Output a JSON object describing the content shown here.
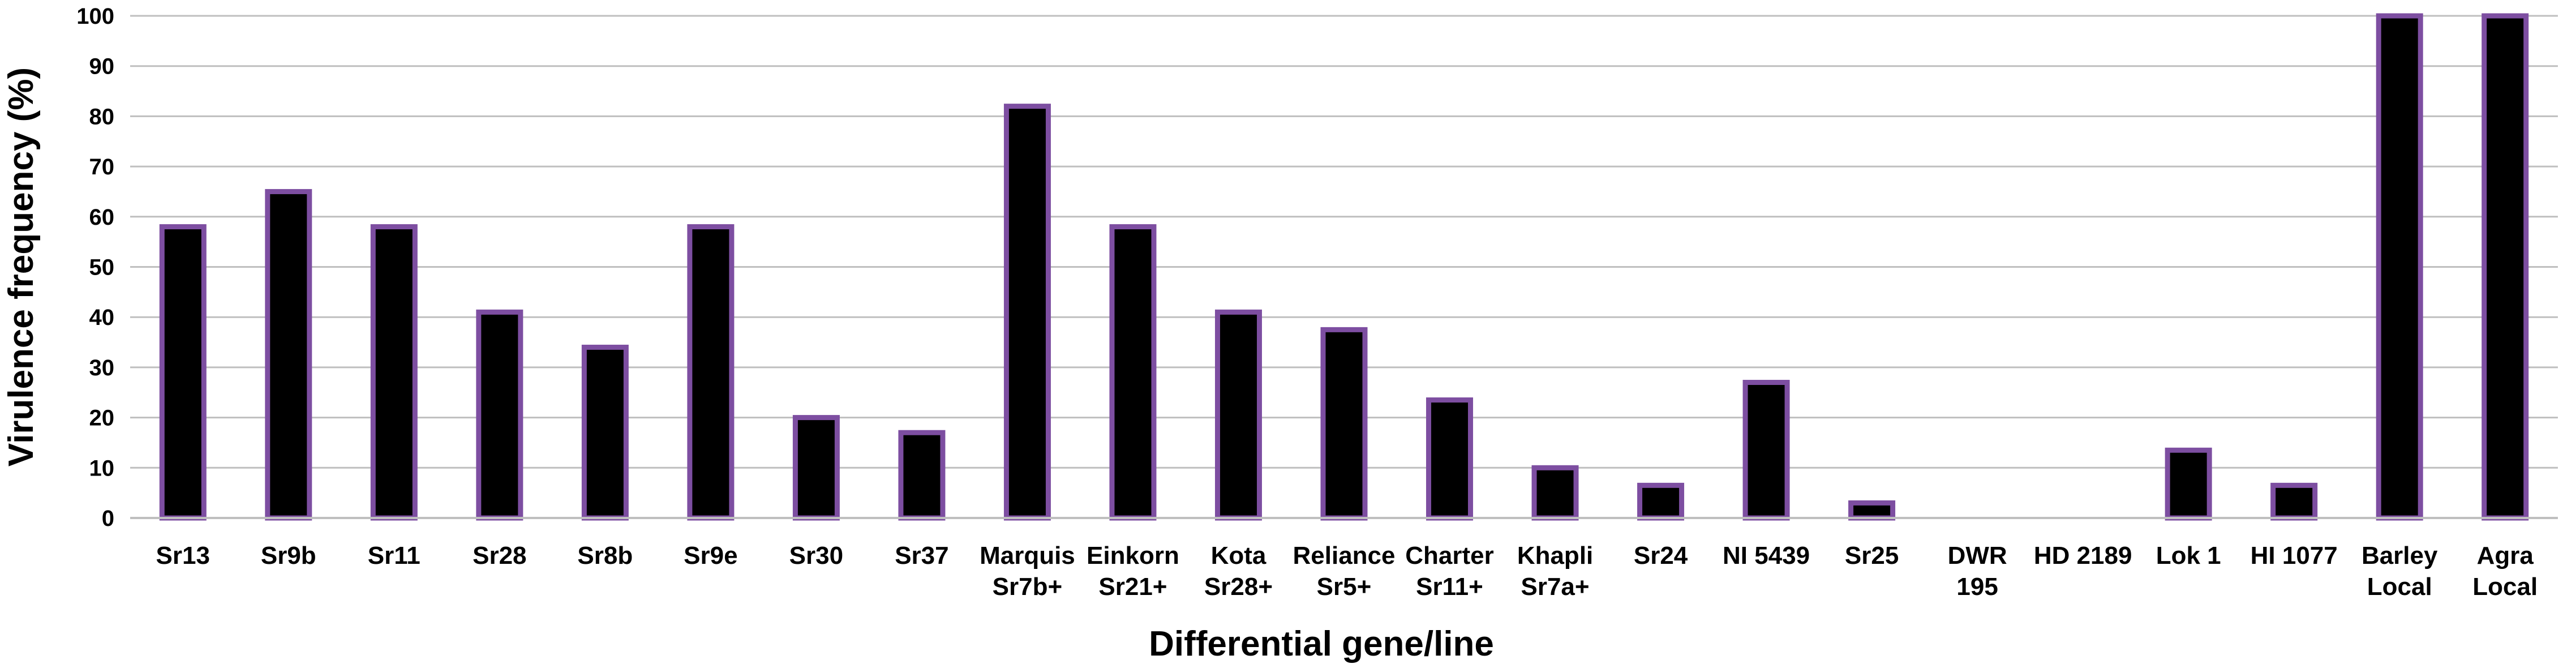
{
  "chart_data": {
    "type": "bar",
    "xlabel": "Differential gene/line",
    "ylabel": "Virulence frequency (%)",
    "ylim": [
      0,
      100
    ],
    "yticks": [
      0,
      10,
      20,
      30,
      40,
      50,
      60,
      70,
      80,
      90,
      100
    ],
    "grid": true,
    "categories": [
      [
        "Sr13"
      ],
      [
        "Sr9b"
      ],
      [
        "Sr11"
      ],
      [
        "Sr28"
      ],
      [
        "Sr8b"
      ],
      [
        "Sr9e"
      ],
      [
        "Sr30"
      ],
      [
        "Sr37"
      ],
      [
        "Marquis",
        "Sr7b+"
      ],
      [
        "Einkorn",
        "Sr21+"
      ],
      [
        "Kota",
        "Sr28+"
      ],
      [
        "Reliance",
        "Sr5+"
      ],
      [
        "Charter",
        "Sr11+"
      ],
      [
        "Khapli",
        "Sr7a+"
      ],
      [
        "Sr24"
      ],
      [
        "NI 5439"
      ],
      [
        "Sr25"
      ],
      [
        "DWR",
        "195"
      ],
      [
        "HD 2189"
      ],
      [
        "Lok 1"
      ],
      [
        "HI 1077"
      ],
      [
        "Barley",
        "Local"
      ],
      [
        "Agra",
        "Local"
      ]
    ],
    "values": [
      58,
      65,
      58,
      41,
      34,
      58,
      20,
      17,
      82,
      58,
      41,
      37.5,
      23.5,
      10,
      6.5,
      27,
      3,
      0,
      0,
      13.5,
      6.5,
      100,
      100
    ],
    "bar_fill": "#000000",
    "bar_outline": "#7d4ea1",
    "grid_color": "#bfbfbf"
  }
}
